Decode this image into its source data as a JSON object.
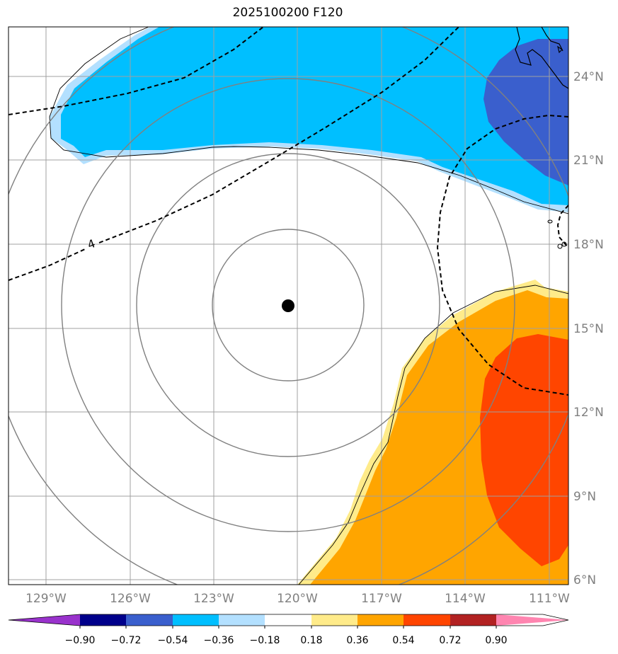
{
  "title": "2025100200 F120",
  "map": {
    "lon_labels": [
      "129°W",
      "126°W",
      "123°W",
      "120°W",
      "117°W",
      "114°W",
      "111°W"
    ],
    "lat_labels": [
      "24°N",
      "21°N",
      "18°N",
      "15°N",
      "12°N",
      "9°N",
      "6°N"
    ],
    "contour_label": "4",
    "storm_center": {
      "lon": "120.3°W",
      "lat": "15.7°N"
    }
  },
  "colorbar": {
    "tick_labels": [
      "−0.90",
      "−0.72",
      "−0.54",
      "−0.36",
      "−0.18",
      "0.18",
      "0.36",
      "0.54",
      "0.72",
      "0.90"
    ],
    "colors": [
      "#9932cc",
      "#00008b",
      "#3a5fcd",
      "#00bfff",
      "#b3e0ff",
      "#ffffff",
      "#ffeb8a",
      "#ffa500",
      "#ff4500",
      "#b22222",
      "#ff85b0"
    ]
  }
}
